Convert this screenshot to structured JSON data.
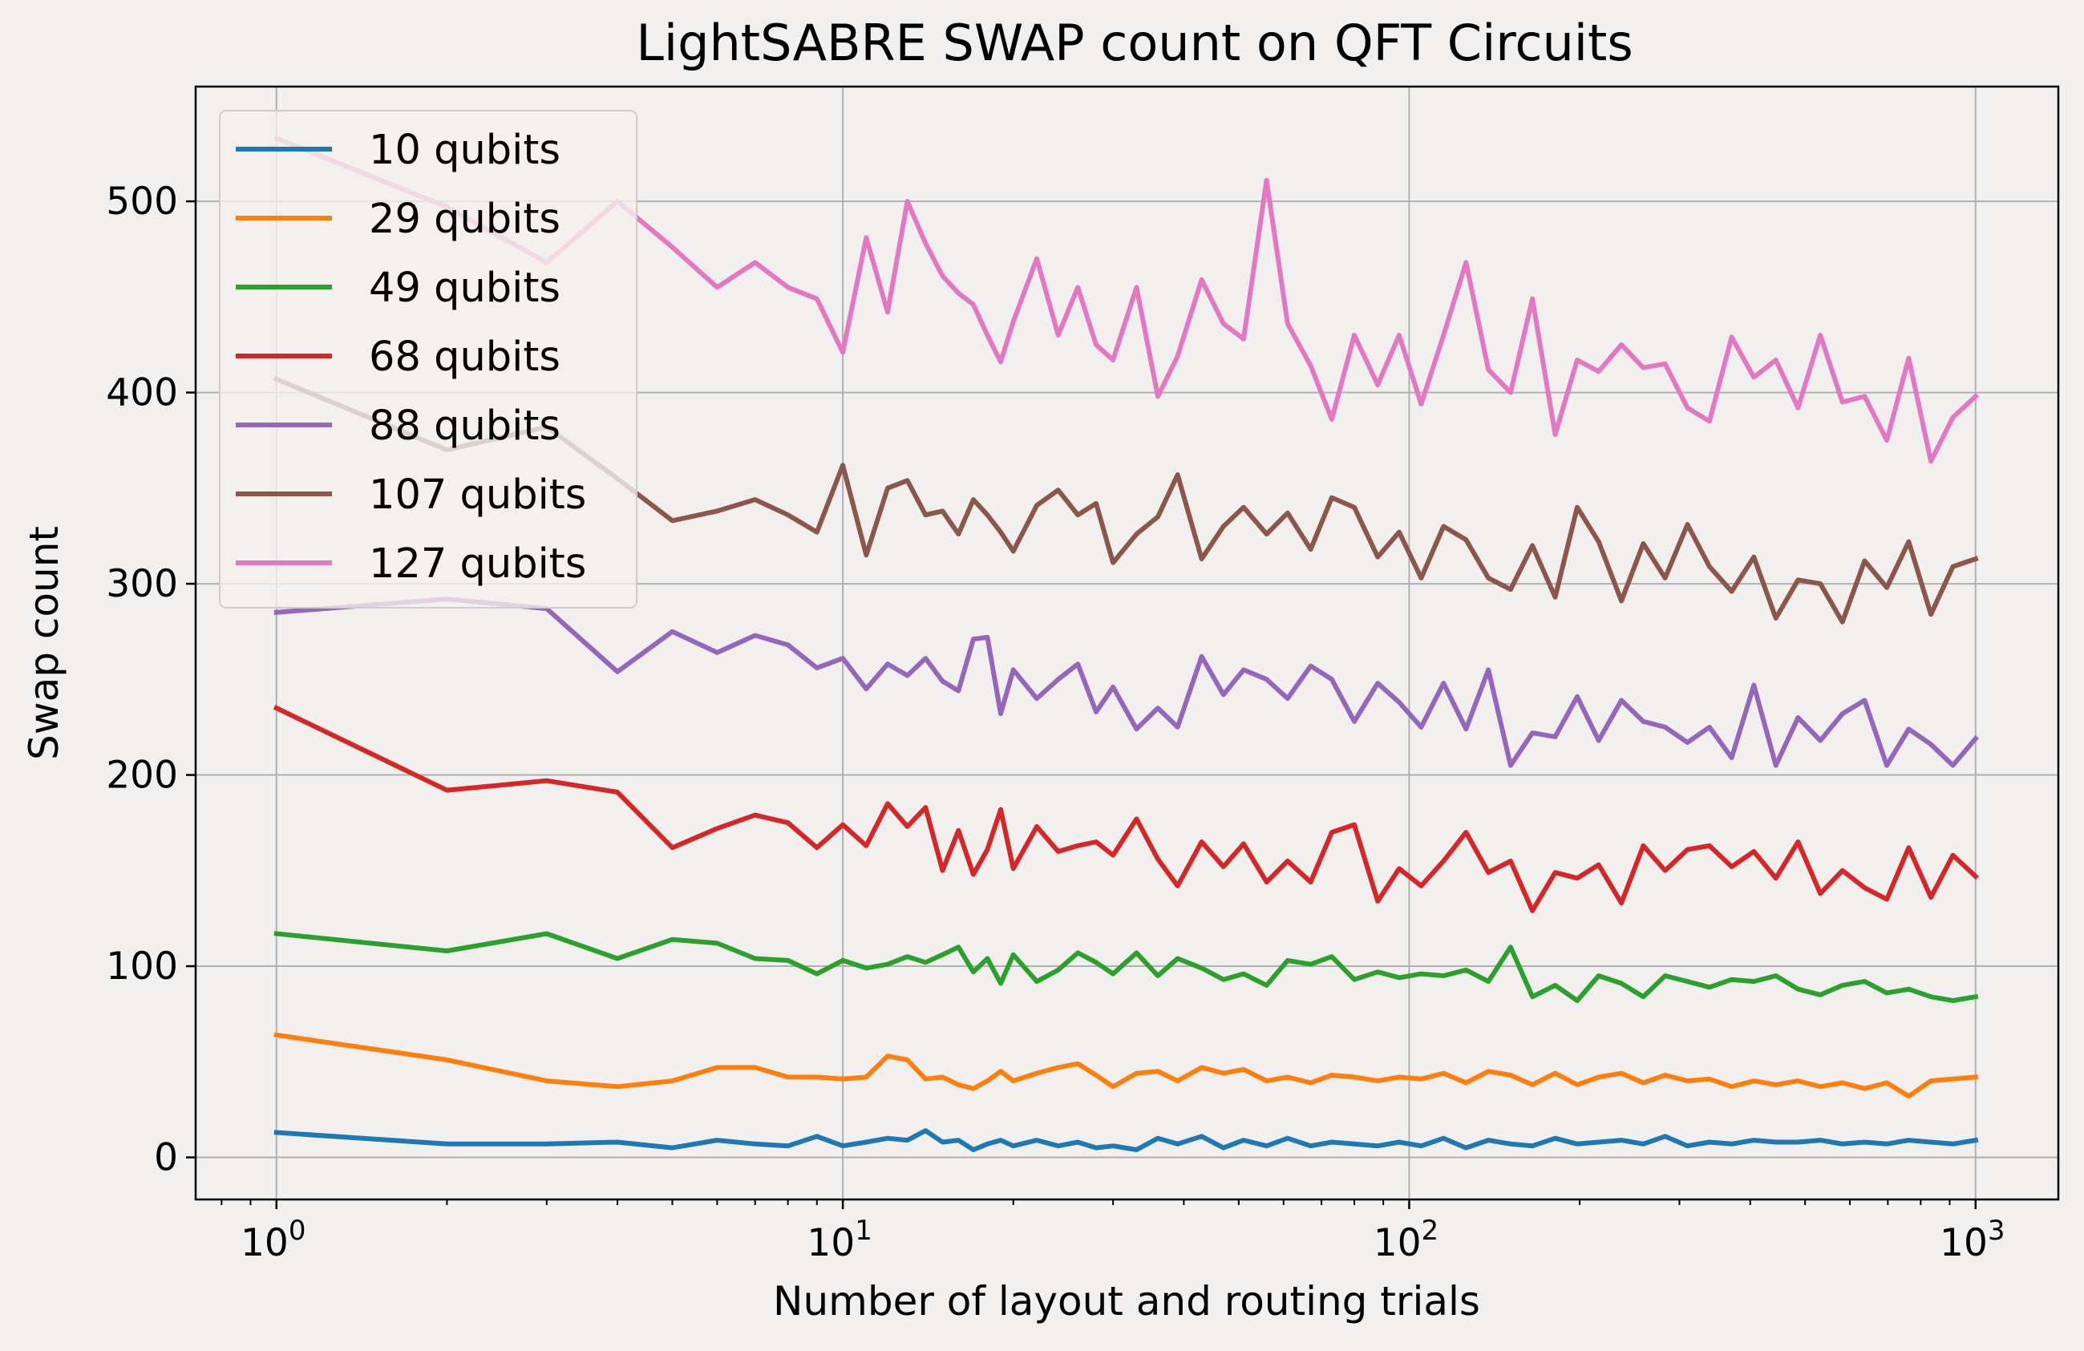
{
  "chart_data": {
    "type": "line",
    "title": "LightSABRE SWAP count on QFT Circuits",
    "xlabel": "Number of layout and routing trials",
    "ylabel": "Swap count",
    "xscale": "log",
    "xlim": [
      0.72,
      1400
    ],
    "ylim": [
      -22,
      560
    ],
    "grid": true,
    "legend_position": "upper left",
    "x_ticks": [
      {
        "value": 1,
        "base": "10",
        "exp": "0"
      },
      {
        "value": 10,
        "base": "10",
        "exp": "1"
      },
      {
        "value": 100,
        "base": "10",
        "exp": "2"
      },
      {
        "value": 1000,
        "base": "10",
        "exp": "3"
      }
    ],
    "y_ticks": [
      0,
      100,
      200,
      300,
      400,
      500
    ],
    "x": [
      1,
      2,
      3,
      4,
      5,
      6,
      7,
      8,
      9,
      10,
      11,
      12,
      13,
      14,
      15,
      16,
      17,
      18,
      19,
      20,
      22,
      24,
      26,
      28,
      30,
      33,
      36,
      39,
      43,
      47,
      51,
      56,
      61,
      67,
      73,
      80,
      88,
      96,
      105,
      115,
      126,
      138,
      151,
      165,
      181,
      198,
      216,
      237,
      259,
      283,
      310,
      339,
      371,
      406,
      444,
      486,
      532,
      582,
      637,
      697,
      762,
      834,
      912,
      1000
    ],
    "series": [
      {
        "name": "10 qubits",
        "color": "#1f77b4",
        "values": [
          13,
          7,
          7,
          8,
          5,
          9,
          7,
          6,
          11,
          6,
          8,
          10,
          9,
          14,
          8,
          9,
          4,
          7,
          9,
          6,
          9,
          6,
          8,
          5,
          6,
          4,
          10,
          7,
          11,
          5,
          9,
          6,
          10,
          6,
          8,
          7,
          6,
          8,
          6,
          10,
          5,
          9,
          7,
          6,
          10,
          7,
          8,
          9,
          7,
          11,
          6,
          8,
          7,
          9,
          8,
          8,
          9,
          7,
          8,
          7,
          9,
          8,
          7,
          9
        ]
      },
      {
        "name": "29 qubits",
        "color": "#ff7f0e",
        "values": [
          64,
          51,
          40,
          37,
          40,
          47,
          47,
          42,
          42,
          41,
          42,
          53,
          51,
          41,
          42,
          38,
          36,
          40,
          45,
          40,
          44,
          47,
          49,
          43,
          37,
          44,
          45,
          40,
          47,
          44,
          46,
          40,
          42,
          39,
          43,
          42,
          40,
          42,
          41,
          44,
          39,
          45,
          43,
          38,
          44,
          38,
          42,
          44,
          39,
          43,
          40,
          41,
          37,
          40,
          38,
          40,
          37,
          39,
          36,
          39,
          32,
          40,
          41,
          42
        ]
      },
      {
        "name": "49 qubits",
        "color": "#2ca02c",
        "values": [
          117,
          108,
          117,
          104,
          114,
          112,
          104,
          103,
          96,
          103,
          99,
          101,
          105,
          102,
          106,
          110,
          97,
          104,
          91,
          106,
          92,
          98,
          107,
          102,
          96,
          107,
          95,
          104,
          99,
          93,
          96,
          90,
          103,
          101,
          105,
          93,
          97,
          94,
          96,
          95,
          98,
          92,
          110,
          84,
          90,
          82,
          95,
          91,
          84,
          95,
          92,
          89,
          93,
          92,
          95,
          88,
          85,
          90,
          92,
          86,
          88,
          84,
          82,
          84
        ]
      },
      {
        "name": "68 qubits",
        "color": "#d62728",
        "values": [
          235,
          192,
          197,
          191,
          162,
          172,
          179,
          175,
          162,
          174,
          163,
          185,
          173,
          183,
          150,
          171,
          148,
          161,
          182,
          151,
          173,
          160,
          163,
          165,
          158,
          177,
          156,
          142,
          165,
          152,
          164,
          144,
          155,
          144,
          170,
          174,
          134,
          151,
          142,
          155,
          170,
          149,
          155,
          129,
          149,
          146,
          153,
          133,
          163,
          150,
          161,
          163,
          152,
          160,
          146,
          165,
          138,
          150,
          141,
          135,
          162,
          136,
          158,
          147
        ]
      },
      {
        "name": "88 qubits",
        "color": "#9467bd",
        "values": [
          285,
          292,
          287,
          254,
          275,
          264,
          273,
          268,
          256,
          261,
          245,
          258,
          252,
          261,
          249,
          244,
          271,
          272,
          232,
          255,
          240,
          250,
          258,
          233,
          246,
          224,
          235,
          225,
          262,
          242,
          255,
          250,
          240,
          257,
          250,
          228,
          248,
          238,
          225,
          248,
          224,
          255,
          205,
          222,
          220,
          241,
          218,
          239,
          228,
          225,
          217,
          225,
          209,
          247,
          205,
          230,
          218,
          232,
          239,
          205,
          224,
          216,
          205,
          219
        ]
      },
      {
        "name": "107 qubits",
        "color": "#8c564b",
        "values": [
          407,
          370,
          382,
          355,
          333,
          338,
          344,
          336,
          327,
          362,
          315,
          350,
          354,
          336,
          338,
          326,
          344,
          336,
          327,
          317,
          341,
          349,
          336,
          342,
          311,
          326,
          335,
          357,
          313,
          330,
          340,
          326,
          337,
          318,
          345,
          340,
          314,
          327,
          303,
          330,
          323,
          303,
          297,
          320,
          293,
          340,
          322,
          291,
          321,
          303,
          331,
          309,
          296,
          314,
          282,
          302,
          300,
          280,
          312,
          298,
          322,
          284,
          309,
          313
        ]
      },
      {
        "name": "127 qubits",
        "color": "#e377c2",
        "values": [
          533,
          497,
          468,
          500,
          476,
          455,
          468,
          455,
          449,
          421,
          481,
          442,
          500,
          478,
          461,
          452,
          446,
          430,
          416,
          437,
          470,
          430,
          455,
          425,
          417,
          455,
          398,
          419,
          459,
          436,
          428,
          511,
          436,
          414,
          386,
          430,
          404,
          430,
          394,
          430,
          468,
          412,
          400,
          449,
          378,
          417,
          411,
          425,
          413,
          415,
          392,
          385,
          429,
          408,
          417,
          392,
          430,
          395,
          398,
          375,
          418,
          364,
          387,
          398
        ]
      }
    ]
  }
}
